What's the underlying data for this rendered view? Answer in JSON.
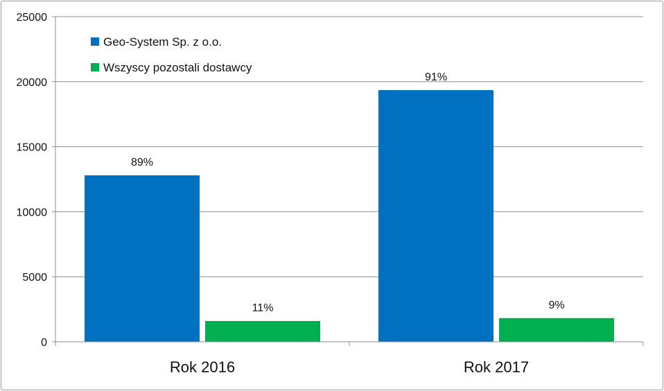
{
  "chart_data": {
    "type": "bar",
    "categories": [
      "Rok 2016",
      "Rok 2017"
    ],
    "series": [
      {
        "name": "Geo-System Sp. z o.o.",
        "values": [
          12800,
          19350
        ],
        "labels": [
          "89%",
          "91%"
        ],
        "color": "#0070C0"
      },
      {
        "name": "Wszyscy pozostali dostawcy",
        "values": [
          1600,
          1820
        ],
        "labels": [
          "11%",
          "9%"
        ],
        "color": "#00B050"
      }
    ],
    "yticks": [
      "0",
      "5000",
      "10000",
      "15000",
      "20000",
      "25000"
    ],
    "ylim": [
      0,
      25000
    ],
    "grid": true,
    "legend_position": "top-left"
  }
}
